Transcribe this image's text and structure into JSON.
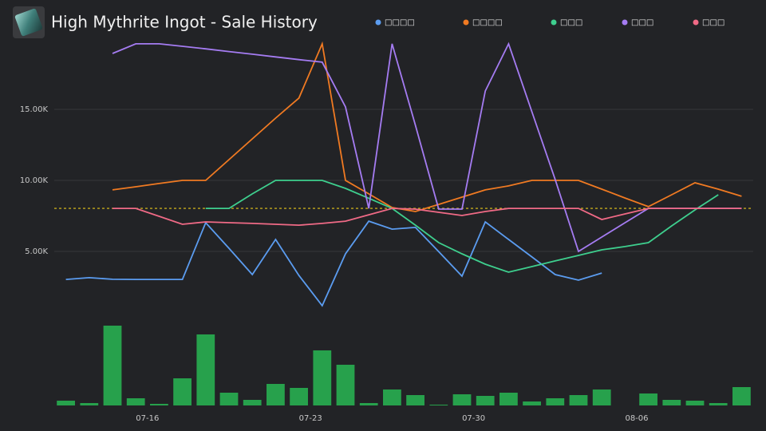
{
  "chart_data": {
    "type": "line",
    "title": "High Mythrite Ingot - Sale History",
    "x": [
      12.5,
      13.5,
      14.5,
      15.5,
      16.5,
      17.5,
      18.5,
      19.5,
      20.5,
      21.5,
      22.5,
      23.5,
      24.5,
      25.5,
      26.5,
      27.5,
      28.5,
      29.5,
      30.5,
      31.5,
      32.5,
      33.5,
      34.5,
      35.5,
      36.5,
      37.5,
      38.5,
      39.5,
      40.5,
      41.5
    ],
    "xlim": [
      12,
      42
    ],
    "xticks": [
      {
        "value": 16,
        "label": "07-16"
      },
      {
        "value": 23,
        "label": "07-23"
      },
      {
        "value": 30,
        "label": "07-30"
      },
      {
        "value": 37,
        "label": "08-06"
      }
    ],
    "ylim": [
      0,
      20000
    ],
    "yticks": [
      {
        "value": 5000,
        "label": "5.00K"
      },
      {
        "value": 10000,
        "label": "10.00K"
      },
      {
        "value": 15000,
        "label": "15.00K"
      }
    ],
    "y2lim": [
      0,
      100
    ],
    "grid": true,
    "reference_line": {
      "value": 8030,
      "color": "#e6c619"
    },
    "series": [
      {
        "name": "□□□□",
        "color": "#5b9cf0",
        "values": [
          3030,
          3150,
          3040,
          3030,
          3030,
          3030,
          7020,
          5220,
          3370,
          5840,
          3310,
          1180,
          4830,
          7130,
          6570,
          6690,
          4990,
          3260,
          7080,
          5840,
          4610,
          3370,
          2980,
          3480,
          null,
          null,
          null,
          null,
          null,
          null
        ]
      },
      {
        "name": "□□□□",
        "color": "#f07a22",
        "values": [
          null,
          null,
          9330,
          9550,
          9780,
          10000,
          10000,
          11460,
          12920,
          14380,
          15790,
          19610,
          10000,
          9050,
          8090,
          7810,
          8310,
          8820,
          9330,
          9610,
          10000,
          10000,
          10000,
          9380,
          8760,
          8150,
          8990,
          9830,
          9380,
          8880
        ]
      },
      {
        "name": "□□□",
        "color": "#3ecf8e",
        "values": [
          null,
          null,
          null,
          null,
          null,
          null,
          8030,
          8030,
          9050,
          10000,
          10000,
          10000,
          9440,
          8740,
          8030,
          6850,
          5620,
          4830,
          4100,
          3540,
          3930,
          4330,
          4720,
          5110,
          5340,
          5620,
          6800,
          7920,
          8990,
          null
        ]
      },
      {
        "name": "□□□",
        "color": "#a57cf2",
        "values": [
          null,
          null,
          18930,
          19610,
          19610,
          19440,
          19260,
          19070,
          18880,
          18690,
          18500,
          18320,
          15170,
          8030,
          19610,
          13880,
          7980,
          7980,
          16290,
          19610,
          14830,
          10060,
          5000,
          6010,
          7020,
          8030,
          8030,
          8030,
          8030,
          8030
        ]
      },
      {
        "name": "□□□",
        "color": "#f06a86",
        "values": [
          null,
          null,
          8030,
          8030,
          7470,
          6910,
          7080,
          7020,
          6970,
          6910,
          6850,
          6970,
          7130,
          7580,
          8030,
          7980,
          7750,
          7530,
          7810,
          8030,
          8030,
          8030,
          8030,
          7250,
          7640,
          8030,
          8030,
          8030,
          8030,
          8030
        ]
      },
      {
        "type": "bar",
        "axis": "y2",
        "color": "#27a14c",
        "values": [
          6,
          3,
          100,
          9,
          2,
          34,
          89,
          16,
          7,
          27,
          22,
          69,
          51,
          3,
          20,
          13,
          1,
          14,
          12,
          16,
          5,
          9,
          13,
          20,
          0,
          15,
          7,
          6,
          3,
          23
        ]
      }
    ]
  }
}
